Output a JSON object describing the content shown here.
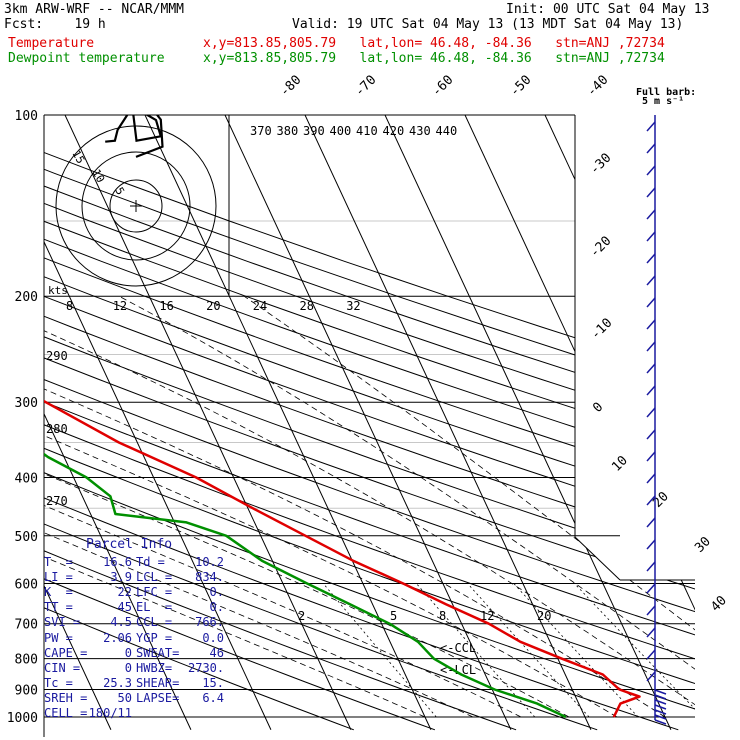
{
  "header": {
    "model": "3km ARW-WRF -- NCAR/MMM",
    "init": "Init: 00 UTC Sat 04 May 13",
    "fcst": "Fcst:    19 h",
    "valid": "Valid: 19 UTC Sat 04 May 13 (13 MDT Sat 04 May 13)",
    "temp_label": "Temperature",
    "dew_label": "Dewpoint temperature",
    "loc": "x,y=813.85,805.79   lat,lon= 46.48, -84.36   stn=ANJ ,72734"
  },
  "barb_key": {
    "line1": "Full barb:",
    "line2": "5 m s⁻¹"
  },
  "colors": {
    "temperature": "#e00000",
    "dewpoint": "#009000",
    "parcel": "#1a1aa0",
    "barb": "#1a1aa0"
  },
  "chart_data": {
    "type": "line",
    "subtype": "skew-T log-p",
    "pressure_levels": [
      "100",
      "200",
      "300",
      "400",
      "500",
      "600",
      "700",
      "800",
      "900",
      "1000"
    ],
    "isotherm_labels": [
      "-80",
      "-70",
      "-60",
      "-50",
      "-40",
      "-30",
      "-20",
      "-10",
      "0",
      "10",
      "20",
      "30",
      "40"
    ],
    "theta_labels": [
      "290",
      "280",
      "270"
    ],
    "theta_e_labels": [
      "370",
      "380",
      "390",
      "400",
      "410",
      "420",
      "430",
      "440"
    ],
    "mixing_ratio_labels": [
      "2",
      "5",
      "8",
      "12",
      "20"
    ],
    "hodograph": {
      "units_label": "kts",
      "ring_labels": [
        "5",
        "10",
        "15"
      ],
      "speed_ticks": [
        "8",
        "12",
        "16",
        "20",
        "24",
        "28",
        "32"
      ]
    },
    "series": [
      {
        "name": "Temperature",
        "points": [
          [
            1000,
            13.6
          ],
          [
            950,
            15.2
          ],
          [
            925,
            18.0
          ],
          [
            900,
            15.9
          ],
          [
            850,
            14.7
          ],
          [
            800,
            10.5
          ],
          [
            750,
            6.3
          ],
          [
            700,
            3.4
          ],
          [
            650,
            -0.8
          ],
          [
            600,
            -5.0
          ],
          [
            550,
            -9.9
          ],
          [
            500,
            -14.4
          ],
          [
            450,
            -19.4
          ],
          [
            400,
            -24.7
          ],
          [
            350,
            -32.3
          ],
          [
            300,
            -39.1
          ],
          [
            250,
            -46.8
          ],
          [
            200,
            -57.5
          ],
          [
            190,
            -60.8
          ],
          [
            170,
            -63.2
          ],
          [
            150,
            -63.7
          ],
          [
            135,
            -64.9
          ],
          [
            120,
            -64.2
          ],
          [
            110,
            -63.6
          ],
          [
            100,
            -64.0
          ]
        ]
      },
      {
        "name": "Dewpoint temperature",
        "points": [
          [
            1000,
            7.6
          ],
          [
            950,
            4.8
          ],
          [
            900,
            0.3
          ],
          [
            850,
            -3.0
          ],
          [
            800,
            -5.5
          ],
          [
            750,
            -6.5
          ],
          [
            700,
            -9.0
          ],
          [
            650,
            -12.8
          ],
          [
            600,
            -17.0
          ],
          [
            550,
            -21.3
          ],
          [
            500,
            -24.3
          ],
          [
            475,
            -28.5
          ],
          [
            460,
            -36.9
          ],
          [
            430,
            -36.5
          ],
          [
            400,
            -38.4
          ],
          [
            370,
            -42.0
          ],
          [
            340,
            -44.6
          ],
          [
            300,
            -47.4
          ],
          [
            260,
            -53.5
          ],
          [
            230,
            -60.5
          ],
          [
            200,
            -68.1
          ],
          [
            180,
            -70.3
          ],
          [
            160,
            -71.4
          ],
          [
            140,
            -73.9
          ],
          [
            120,
            -78.4
          ],
          [
            110,
            -83.5
          ],
          [
            100,
            -86.9
          ]
        ]
      }
    ],
    "special_labels": [
      "<-CCL",
      "<-LCL"
    ],
    "hodograph_trace": [
      [
        0,
        0.91
      ],
      [
        0.49,
        1.1
      ],
      [
        0.46,
        1.6
      ],
      [
        0.2,
        1.93
      ],
      [
        -0.07,
        1.85
      ],
      [
        0.37,
        1.59
      ],
      [
        0.46,
        1.29
      ],
      [
        0.01,
        1.21
      ],
      [
        -0.06,
        1.77
      ],
      [
        -0.08,
        2.1
      ],
      [
        -0.12,
        1.75
      ],
      [
        -0.34,
        1.41
      ],
      [
        -0.39,
        1.21
      ],
      [
        -0.57,
        1.19
      ]
    ]
  },
  "parcel_info": {
    "title": "Parcel Info",
    "rows": [
      {
        "k1": "T  =",
        "v1": "16.6",
        "k2": "Td =",
        "v2": "10.2"
      },
      {
        "k1": "LI =",
        "v1": "3.9",
        "k2": "LCL =",
        "v2": "834."
      },
      {
        "k1": "K  =",
        "v1": "22",
        "k2": "LFC =",
        "v2": "0."
      },
      {
        "k1": "TT =",
        "v1": "45",
        "k2": "EL  =",
        "v2": "0."
      },
      {
        "k1": "SVI =",
        "v1": "4.5",
        "k2": "CCL =",
        "v2": "766."
      },
      {
        "k1": "PW =",
        "v1": "2.06",
        "k2": "YGP =",
        "v2": "0.0"
      },
      {
        "k1": "CAPE =",
        "v1": "0",
        "k2": "SWEAT=",
        "v2": "46"
      },
      {
        "k1": "CIN =",
        "v1": "0",
        "k2": "HWBZ=",
        "v2": "2730."
      },
      {
        "k1": "Tc =",
        "v1": "25.3",
        "k2": "SHEAR=",
        "v2": "15."
      },
      {
        "k1": "SREH =",
        "v1": "50",
        "k2": "LAPSE=",
        "v2": "6.4"
      },
      {
        "k1": "CELL =",
        "v1": "180/11",
        "k2": "",
        "v2": ""
      }
    ]
  }
}
